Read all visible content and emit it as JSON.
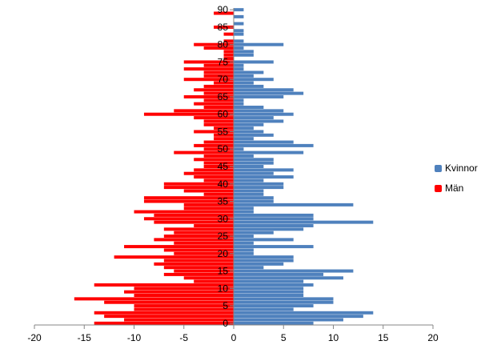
{
  "colors": {
    "kvinnor": "#4f81bd",
    "man": "#ff0000",
    "axis": "#868686"
  },
  "chart_data": {
    "type": "bar",
    "orientation": "horizontal",
    "title": "",
    "xlabel": "",
    "ylabel": "",
    "xlim": [
      -20,
      20
    ],
    "ylim": [
      0,
      91
    ],
    "x_ticks": [
      -20,
      -15,
      -10,
      -5,
      0,
      5,
      10,
      15,
      20
    ],
    "x_tick_labels": [
      "-20",
      "-15",
      "-10",
      "-5",
      "0",
      "5",
      "10",
      "15",
      "20"
    ],
    "y_ticks": [
      0,
      5,
      10,
      15,
      20,
      25,
      30,
      35,
      40,
      45,
      50,
      55,
      60,
      65,
      70,
      75,
      80,
      85,
      90
    ],
    "y_tick_labels": [
      "0",
      "5",
      "10",
      "15",
      "20",
      "25",
      "30",
      "35",
      "40",
      "45",
      "50",
      "55",
      "60",
      "65",
      "70",
      "75",
      "80",
      "85",
      "90"
    ],
    "legend_position": "right",
    "categories": [
      0,
      1,
      2,
      3,
      4,
      5,
      6,
      7,
      8,
      9,
      10,
      11,
      12,
      13,
      14,
      15,
      16,
      17,
      18,
      19,
      20,
      21,
      22,
      23,
      24,
      25,
      26,
      27,
      28,
      29,
      30,
      31,
      32,
      33,
      34,
      35,
      36,
      37,
      38,
      39,
      40,
      41,
      42,
      43,
      44,
      45,
      46,
      47,
      48,
      49,
      50,
      51,
      52,
      53,
      54,
      55,
      56,
      57,
      58,
      59,
      60,
      61,
      62,
      63,
      64,
      65,
      66,
      67,
      68,
      69,
      70,
      71,
      72,
      73,
      74,
      75,
      76,
      77,
      78,
      79,
      80,
      81,
      82,
      83,
      84,
      85,
      86,
      87,
      88,
      89,
      90
    ],
    "series": [
      {
        "name": "Kvinnor",
        "values": [
          8,
          11,
          13,
          14,
          6,
          8,
          10,
          10,
          7,
          7,
          7,
          8,
          7,
          11,
          9,
          12,
          3,
          5,
          6,
          6,
          2,
          2,
          8,
          2,
          6,
          2,
          4,
          7,
          8,
          14,
          8,
          8,
          2,
          2,
          12,
          4,
          4,
          3,
          3,
          5,
          5,
          3,
          6,
          4,
          6,
          3,
          4,
          4,
          2,
          7,
          1,
          8,
          6,
          2,
          4,
          3,
          2,
          3,
          5,
          4,
          6,
          5,
          3,
          1,
          1,
          5,
          7,
          6,
          3,
          2,
          4,
          2,
          3,
          1,
          1,
          4,
          0,
          2,
          2,
          1,
          5,
          1,
          0,
          1,
          1,
          0,
          1,
          0,
          1,
          0,
          1
        ]
      },
      {
        "name": "Män",
        "values": [
          -14,
          -11,
          -13,
          -14,
          -10,
          -10,
          -13,
          -16,
          -10,
          -11,
          -10,
          -14,
          -4,
          -5,
          -7,
          -6,
          -7,
          -8,
          -7,
          -12,
          -6,
          -7,
          -11,
          -6,
          -8,
          -7,
          -6,
          -7,
          -4,
          -8,
          -9,
          -8,
          -10,
          -5,
          -5,
          -9,
          -9,
          -3,
          -5,
          -7,
          -7,
          -3,
          -4,
          -5,
          -4,
          -3,
          -3,
          -4,
          -3,
          -6,
          -3,
          -4,
          -3,
          -2,
          -2,
          -4,
          -2,
          -3,
          -3,
          -4,
          -9,
          -6,
          -3,
          -4,
          -3,
          -5,
          -3,
          -4,
          -3,
          -2,
          -5,
          -3,
          -3,
          -5,
          -3,
          -5,
          -1,
          -1,
          -1,
          -3,
          -4,
          -1,
          0,
          -1,
          0,
          -2,
          0,
          0,
          0,
          -2,
          0
        ]
      }
    ]
  },
  "legend": {
    "kvinnor_label": "Kvinnor",
    "man_label": "Män"
  }
}
